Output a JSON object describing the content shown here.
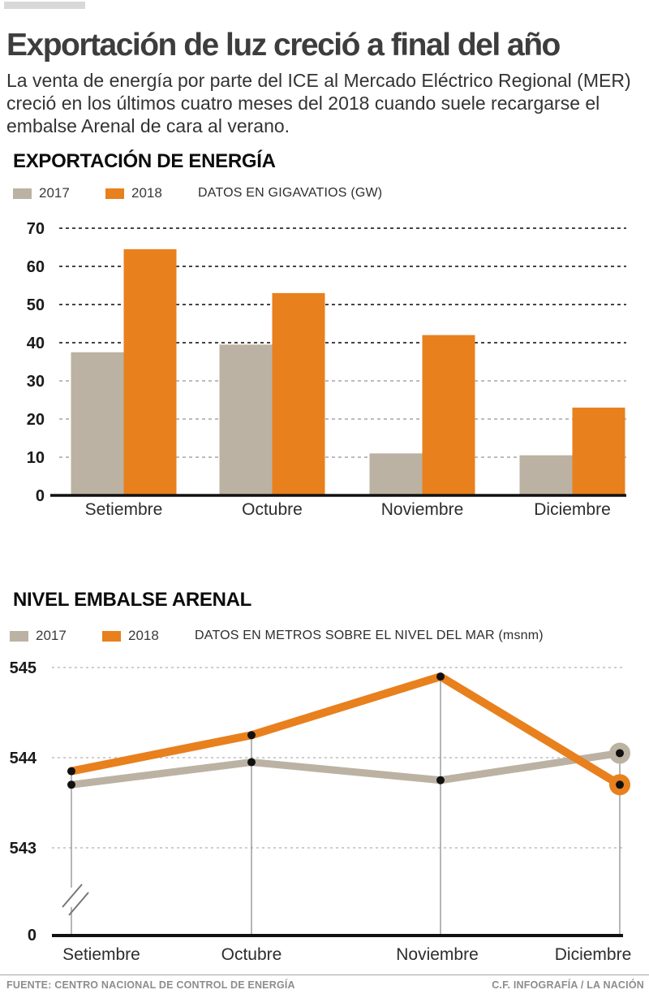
{
  "header": {
    "title": "Exportación de luz creció a final del año",
    "intro": "La venta de energía por parte del ICE al Mercado Eléctrico Regional (MER) creció en los últimos cuatro meses del 2018 cuando suele recargarse el embalse Arenal de cara al verano."
  },
  "colors": {
    "c2017": "#bbb2a3",
    "c2018": "#e8801e",
    "axis": "#111111",
    "grid_dark": "#2b2b2b",
    "grid_light": "#b3b3b3",
    "guide_line": "#8f8f8f"
  },
  "chart_data": [
    {
      "type": "bar",
      "title": "EXPORTACIÓN DE ENERGÍA",
      "note": "DATOS EN GIGAVATIOS (GW)",
      "categories": [
        "Setiembre",
        "Octubre",
        "Noviembre",
        "Diciembre"
      ],
      "series": [
        {
          "name": "2017",
          "values": [
            37.5,
            39.5,
            11,
            10.5
          ]
        },
        {
          "name": "2018",
          "values": [
            64.5,
            53,
            42,
            23
          ]
        }
      ],
      "ylabel": "GW",
      "ylim": [
        0,
        70
      ],
      "yticks": [
        0,
        10,
        20,
        30,
        40,
        50,
        60,
        70
      ],
      "grid": "horizontal-dashed",
      "legend_position": "top"
    },
    {
      "type": "line",
      "title": "NIVEL EMBALSE ARENAL",
      "note": "DATOS EN METROS SOBRE EL NIVEL DEL MAR (msnm)",
      "categories": [
        "Setiembre",
        "Octubre",
        "Noviembre",
        "Diciembre"
      ],
      "series": [
        {
          "name": "2017",
          "values": [
            543.7,
            543.95,
            543.75,
            544.05
          ]
        },
        {
          "name": "2018",
          "values": [
            543.85,
            544.25,
            544.9,
            543.7
          ]
        }
      ],
      "ylabel": "msnm",
      "yticks": [
        543,
        544,
        545
      ],
      "ytick_zero": "0",
      "axis_break": true,
      "grid": "horizontal-dashed",
      "legend_position": "top"
    }
  ],
  "footer": {
    "source": "FUENTE: CENTRO NACIONAL DE CONTROL DE ENERGÍA",
    "credit": "C.F. INFOGRAFÍA / LA NACIÓN"
  }
}
